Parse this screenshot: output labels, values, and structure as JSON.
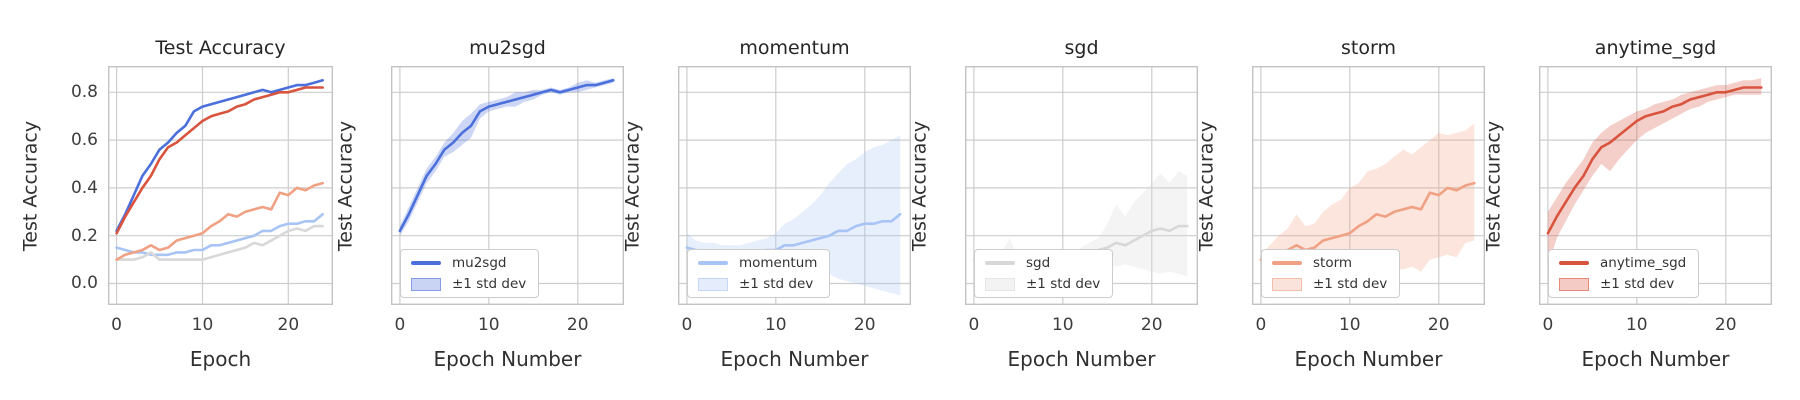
{
  "figure": {
    "background": "#ffffff",
    "grid_color": "#cdcdcd",
    "spine_color": "#c3c3c3",
    "title_color": "#262626",
    "tick_color": "#3d3d3d",
    "epochs": [
      0,
      1,
      2,
      3,
      4,
      5,
      6,
      7,
      8,
      9,
      10,
      11,
      12,
      13,
      14,
      15,
      16,
      17,
      18,
      19,
      20,
      21,
      22,
      23,
      24
    ],
    "xlim": [
      -1,
      25.2
    ],
    "ylim": [
      -0.09,
      0.91
    ],
    "xticks": [
      0,
      10,
      20
    ],
    "yticks": [
      0.0,
      0.2,
      0.4,
      0.6,
      0.8
    ],
    "xtick_labels": [
      "0",
      "10",
      "20"
    ],
    "ytick_labels": [
      "0.0",
      "0.2",
      "0.4",
      "0.6",
      "0.8"
    ],
    "grid": true,
    "band_opacity": 0.28
  },
  "palette": {
    "mu2sgd": "#4b70dc",
    "momentum": "#a8c4f5",
    "sgd": "#d8d8d8",
    "storm": "#f0a183",
    "anytime_sgd": "#d9543e"
  },
  "std_band_label": "±1 std dev",
  "chart_data": [
    {
      "type": "line",
      "title": "Test Accuracy",
      "xlabel": "Epoch",
      "ylabel": "Test Accuracy",
      "show_ytick_labels": true,
      "legend": [],
      "series": [
        {
          "name": "mu2sgd",
          "color": "#4b70dc",
          "values": [
            0.22,
            0.29,
            0.37,
            0.45,
            0.5,
            0.56,
            0.59,
            0.63,
            0.66,
            0.72,
            0.74,
            0.75,
            0.76,
            0.77,
            0.78,
            0.79,
            0.8,
            0.81,
            0.8,
            0.81,
            0.82,
            0.83,
            0.83,
            0.84,
            0.85
          ]
        },
        {
          "name": "momentum",
          "color": "#a8c4f5",
          "values": [
            0.15,
            0.14,
            0.13,
            0.13,
            0.12,
            0.12,
            0.12,
            0.13,
            0.13,
            0.14,
            0.14,
            0.16,
            0.16,
            0.17,
            0.18,
            0.19,
            0.2,
            0.22,
            0.22,
            0.24,
            0.25,
            0.25,
            0.26,
            0.26,
            0.29
          ]
        },
        {
          "name": "sgd",
          "color": "#d8d8d8",
          "values": [
            0.1,
            0.1,
            0.1,
            0.11,
            0.13,
            0.1,
            0.1,
            0.1,
            0.1,
            0.1,
            0.1,
            0.11,
            0.12,
            0.13,
            0.14,
            0.15,
            0.17,
            0.16,
            0.18,
            0.2,
            0.22,
            0.23,
            0.22,
            0.24,
            0.24
          ]
        },
        {
          "name": "storm",
          "color": "#f0a183",
          "values": [
            0.1,
            0.12,
            0.13,
            0.14,
            0.16,
            0.14,
            0.15,
            0.18,
            0.19,
            0.2,
            0.21,
            0.24,
            0.26,
            0.29,
            0.28,
            0.3,
            0.31,
            0.32,
            0.31,
            0.38,
            0.37,
            0.4,
            0.39,
            0.41,
            0.42
          ]
        },
        {
          "name": "anytime_sgd",
          "color": "#d9543e",
          "values": [
            0.21,
            0.28,
            0.34,
            0.4,
            0.45,
            0.52,
            0.57,
            0.59,
            0.62,
            0.65,
            0.68,
            0.7,
            0.71,
            0.72,
            0.74,
            0.75,
            0.77,
            0.78,
            0.79,
            0.8,
            0.8,
            0.81,
            0.82,
            0.82,
            0.82
          ]
        }
      ]
    },
    {
      "type": "line",
      "title": "mu2sgd",
      "xlabel": "Epoch Number",
      "ylabel": "Test Accuracy",
      "show_ytick_labels": false,
      "legend": [
        "mu2sgd",
        "±1 std dev"
      ],
      "series": [
        {
          "name": "mu2sgd",
          "color": "#4b70dc",
          "values": [
            0.22,
            0.29,
            0.37,
            0.45,
            0.5,
            0.56,
            0.59,
            0.63,
            0.66,
            0.72,
            0.74,
            0.75,
            0.76,
            0.77,
            0.78,
            0.79,
            0.8,
            0.81,
            0.8,
            0.81,
            0.82,
            0.83,
            0.83,
            0.84,
            0.85
          ],
          "band_lower": [
            0.2,
            0.26,
            0.34,
            0.42,
            0.47,
            0.53,
            0.55,
            0.58,
            0.61,
            0.69,
            0.72,
            0.73,
            0.74,
            0.74,
            0.76,
            0.77,
            0.79,
            0.8,
            0.79,
            0.8,
            0.8,
            0.81,
            0.82,
            0.83,
            0.84
          ],
          "band_upper": [
            0.24,
            0.32,
            0.4,
            0.48,
            0.53,
            0.59,
            0.63,
            0.68,
            0.71,
            0.75,
            0.76,
            0.77,
            0.78,
            0.8,
            0.8,
            0.81,
            0.81,
            0.82,
            0.81,
            0.82,
            0.84,
            0.85,
            0.84,
            0.85,
            0.86
          ]
        }
      ]
    },
    {
      "type": "line",
      "title": "momentum",
      "xlabel": "Epoch Number",
      "ylabel": "Test Accuracy",
      "show_ytick_labels": false,
      "legend": [
        "momentum",
        "±1 std dev"
      ],
      "series": [
        {
          "name": "momentum",
          "color": "#a8c4f5",
          "values": [
            0.15,
            0.14,
            0.13,
            0.13,
            0.12,
            0.12,
            0.12,
            0.13,
            0.13,
            0.14,
            0.14,
            0.16,
            0.16,
            0.17,
            0.18,
            0.19,
            0.2,
            0.22,
            0.22,
            0.24,
            0.25,
            0.25,
            0.26,
            0.26,
            0.29
          ],
          "band_lower": [
            0.1,
            0.1,
            0.09,
            0.09,
            0.09,
            0.08,
            0.08,
            0.09,
            0.09,
            0.09,
            0.08,
            0.09,
            0.08,
            0.07,
            0.06,
            0.05,
            0.04,
            0.02,
            0.01,
            0.0,
            -0.01,
            -0.02,
            -0.03,
            -0.04,
            -0.05
          ],
          "band_upper": [
            0.21,
            0.18,
            0.17,
            0.17,
            0.16,
            0.16,
            0.16,
            0.17,
            0.18,
            0.19,
            0.21,
            0.25,
            0.27,
            0.3,
            0.33,
            0.37,
            0.42,
            0.46,
            0.5,
            0.52,
            0.55,
            0.57,
            0.58,
            0.6,
            0.62
          ]
        }
      ]
    },
    {
      "type": "line",
      "title": "sgd",
      "xlabel": "Epoch Number",
      "ylabel": "Test Accuracy",
      "show_ytick_labels": false,
      "legend": [
        "sgd",
        "±1 std dev"
      ],
      "series": [
        {
          "name": "sgd",
          "color": "#d8d8d8",
          "values": [
            0.1,
            0.1,
            0.1,
            0.11,
            0.13,
            0.1,
            0.1,
            0.1,
            0.1,
            0.1,
            0.1,
            0.11,
            0.12,
            0.13,
            0.14,
            0.15,
            0.17,
            0.16,
            0.18,
            0.2,
            0.22,
            0.23,
            0.22,
            0.24,
            0.24
          ],
          "band_lower": [
            0.09,
            0.09,
            0.09,
            0.09,
            0.09,
            0.09,
            0.09,
            0.09,
            0.09,
            0.09,
            0.09,
            0.09,
            0.09,
            0.09,
            0.09,
            0.08,
            0.07,
            0.08,
            0.07,
            0.06,
            0.05,
            0.04,
            0.05,
            0.04,
            0.03
          ],
          "band_upper": [
            0.11,
            0.11,
            0.11,
            0.12,
            0.19,
            0.11,
            0.11,
            0.11,
            0.11,
            0.11,
            0.11,
            0.12,
            0.15,
            0.17,
            0.19,
            0.25,
            0.33,
            0.28,
            0.34,
            0.38,
            0.42,
            0.46,
            0.42,
            0.47,
            0.45
          ]
        }
      ]
    },
    {
      "type": "line",
      "title": "storm",
      "xlabel": "Epoch Number",
      "ylabel": "Test Accuracy",
      "show_ytick_labels": false,
      "legend": [
        "storm",
        "±1 std dev"
      ],
      "series": [
        {
          "name": "storm",
          "color": "#f0a183",
          "values": [
            0.1,
            0.12,
            0.13,
            0.14,
            0.16,
            0.14,
            0.15,
            0.18,
            0.19,
            0.2,
            0.21,
            0.24,
            0.26,
            0.29,
            0.28,
            0.3,
            0.31,
            0.32,
            0.31,
            0.38,
            0.37,
            0.4,
            0.39,
            0.41,
            0.42
          ],
          "band_lower": [
            0.08,
            0.08,
            0.07,
            0.07,
            0.06,
            0.06,
            0.06,
            0.07,
            0.06,
            0.07,
            0.06,
            0.07,
            0.07,
            0.06,
            0.05,
            0.06,
            0.06,
            0.07,
            0.05,
            0.1,
            0.11,
            0.12,
            0.11,
            0.17,
            0.18
          ],
          "band_upper": [
            0.12,
            0.16,
            0.2,
            0.23,
            0.29,
            0.24,
            0.25,
            0.3,
            0.33,
            0.35,
            0.4,
            0.42,
            0.47,
            0.48,
            0.5,
            0.53,
            0.56,
            0.54,
            0.57,
            0.6,
            0.63,
            0.62,
            0.63,
            0.64,
            0.67
          ]
        }
      ]
    },
    {
      "type": "line",
      "title": "anytime_sgd",
      "xlabel": "Epoch Number",
      "ylabel": "Test Accuracy",
      "show_ytick_labels": false,
      "legend": [
        "anytime_sgd",
        "±1 std dev"
      ],
      "series": [
        {
          "name": "anytime_sgd",
          "color": "#d9543e",
          "values": [
            0.21,
            0.28,
            0.34,
            0.4,
            0.45,
            0.52,
            0.57,
            0.59,
            0.62,
            0.65,
            0.68,
            0.7,
            0.71,
            0.72,
            0.74,
            0.75,
            0.77,
            0.78,
            0.79,
            0.8,
            0.8,
            0.81,
            0.82,
            0.82,
            0.82
          ],
          "band_lower": [
            0.07,
            0.19,
            0.26,
            0.33,
            0.39,
            0.45,
            0.5,
            0.47,
            0.52,
            0.56,
            0.6,
            0.63,
            0.65,
            0.67,
            0.69,
            0.71,
            0.73,
            0.74,
            0.76,
            0.77,
            0.78,
            0.79,
            0.79,
            0.79,
            0.79
          ],
          "band_upper": [
            0.3,
            0.36,
            0.42,
            0.47,
            0.52,
            0.59,
            0.63,
            0.66,
            0.68,
            0.7,
            0.72,
            0.73,
            0.75,
            0.76,
            0.77,
            0.79,
            0.8,
            0.81,
            0.82,
            0.83,
            0.83,
            0.84,
            0.85,
            0.85,
            0.86
          ]
        }
      ]
    }
  ]
}
